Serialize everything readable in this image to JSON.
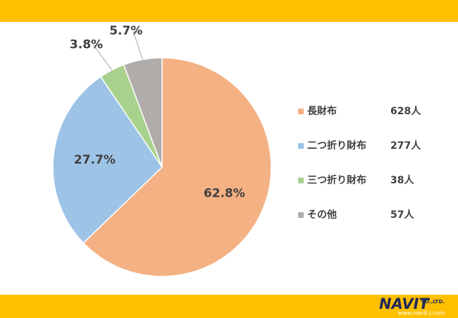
{
  "chart_data": {
    "type": "pie",
    "categories": [
      "長財布",
      "二つ折り財布",
      "三つ折り財布",
      "その他"
    ],
    "values": [
      62.8,
      27.7,
      3.8,
      5.7
    ],
    "value_labels": [
      "62.8%",
      "27.7%",
      "3.8%",
      "5.7%"
    ],
    "count_labels": [
      "628人",
      "277人",
      "38人",
      "57人"
    ],
    "colors": [
      "#F4B183",
      "#9DC3E6",
      "#A9D18E",
      "#B0ACAA"
    ],
    "legend": "right"
  },
  "footer": {
    "logo": "NAVIT",
    "company": "CO.,LTD.",
    "url": "www.navit-j.com"
  }
}
